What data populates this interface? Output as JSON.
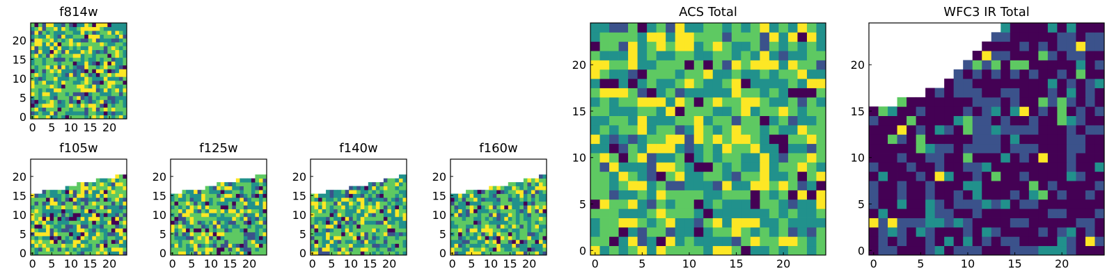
{
  "colormap": [
    "#440154",
    "#3b528b",
    "#21918c",
    "#5ec962",
    "#fde725"
  ],
  "chart_data": [
    {
      "type": "heatmap",
      "title": "f814w",
      "grid": [
        25,
        25
      ],
      "xticks": [
        0,
        5,
        10,
        15,
        20
      ],
      "yticks": [
        0,
        5,
        10,
        15,
        20
      ],
      "coverage": "full",
      "zrange": [
        0,
        1
      ],
      "ylabel_ticks": true
    },
    {
      "type": "heatmap",
      "title": "f105w",
      "grid": [
        25,
        25
      ],
      "xticks": [
        0,
        5,
        10,
        15,
        20
      ],
      "yticks": [
        0,
        5,
        10,
        15,
        20
      ],
      "coverage": "partial",
      "coverage_top_by_column": [
        16,
        16,
        16,
        17,
        17,
        17,
        17,
        17,
        17,
        18,
        18,
        18,
        19,
        19,
        19,
        19,
        19,
        20,
        20,
        20,
        20,
        20,
        21,
        21,
        21
      ],
      "zrange": [
        0,
        1
      ]
    },
    {
      "type": "heatmap",
      "title": "f125w",
      "grid": [
        25,
        25
      ],
      "xticks": [
        0,
        5,
        10,
        15,
        20
      ],
      "yticks": [
        0,
        5,
        10,
        15,
        20
      ],
      "coverage": "partial",
      "coverage_top_by_column": [
        16,
        16,
        16,
        17,
        17,
        17,
        17,
        17,
        17,
        18,
        18,
        18,
        19,
        19,
        19,
        19,
        19,
        20,
        20,
        20,
        20,
        20,
        21,
        21,
        21
      ],
      "zrange": [
        0,
        1
      ]
    },
    {
      "type": "heatmap",
      "title": "f140w",
      "grid": [
        25,
        25
      ],
      "xticks": [
        0,
        5,
        10,
        15,
        20
      ],
      "yticks": [
        0,
        5,
        10,
        15,
        20
      ],
      "coverage": "partial",
      "coverage_top_by_column": [
        16,
        16,
        16,
        16,
        17,
        17,
        17,
        17,
        17,
        17,
        18,
        18,
        18,
        18,
        18,
        19,
        19,
        19,
        19,
        20,
        20,
        20,
        20,
        21,
        21
      ],
      "zrange": [
        0,
        1
      ]
    },
    {
      "type": "heatmap",
      "title": "f160w",
      "grid": [
        25,
        25
      ],
      "xticks": [
        0,
        5,
        10,
        15,
        20
      ],
      "yticks": [
        0,
        5,
        10,
        15,
        20
      ],
      "coverage": "partial",
      "coverage_top_by_column": [
        16,
        16,
        16,
        16,
        17,
        17,
        17,
        17,
        17,
        17,
        18,
        18,
        18,
        18,
        18,
        19,
        19,
        19,
        19,
        20,
        20,
        20,
        20,
        21,
        21
      ],
      "zrange": [
        0,
        1
      ]
    },
    {
      "type": "heatmap",
      "title": "ACS Total",
      "grid": [
        25,
        25
      ],
      "xticks": [
        0,
        5,
        10,
        15,
        20
      ],
      "yticks": [
        0,
        5,
        10,
        15,
        20
      ],
      "coverage": "full",
      "zrange": [
        0,
        1
      ]
    },
    {
      "type": "heatmap",
      "title": "WFC3 IR Total",
      "grid": [
        25,
        25
      ],
      "xticks": [
        0,
        5,
        10,
        15,
        20
      ],
      "yticks": [
        0,
        5,
        10,
        15,
        20
      ],
      "coverage": "partial",
      "coverage_top_by_column": [
        16,
        16,
        16,
        17,
        17,
        17,
        18,
        18,
        19,
        20,
        21,
        22,
        23,
        24,
        25,
        25,
        25,
        25,
        25,
        25,
        25,
        25,
        25,
        25,
        25
      ],
      "zrange": [
        0,
        1
      ]
    }
  ]
}
